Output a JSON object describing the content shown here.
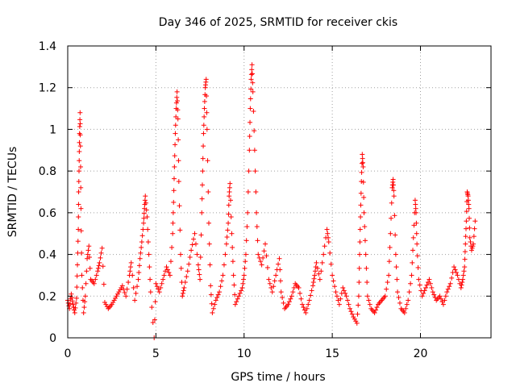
{
  "chart_data": {
    "type": "scatter",
    "title": "Day 346 of 2025, SRMTID for receiver ckis",
    "xlabel": "GPS time / hours",
    "ylabel": "SRMTID / TECUs",
    "xlim": [
      0,
      24
    ],
    "ylim": [
      0,
      1.4
    ],
    "xticks": [
      0,
      5,
      10,
      15,
      20
    ],
    "xtick_labels": [
      "0",
      "5",
      "10",
      "15",
      "20"
    ],
    "yticks": [
      0,
      0.2,
      0.4,
      0.6,
      0.8,
      1.0,
      1.2,
      1.4
    ],
    "ytick_labels": [
      "0",
      "0.2",
      "0.4",
      "0.6",
      "0.8",
      "1",
      "1.2",
      "1.4"
    ],
    "grid": true,
    "marker": "+",
    "color": "#ff0000",
    "series": [
      {
        "name": "ckis",
        "points": [
          [
            0.0,
            0.18
          ],
          [
            0.1,
            0.14
          ],
          [
            0.2,
            0.21
          ],
          [
            0.3,
            0.16
          ],
          [
            0.4,
            0.12
          ],
          [
            0.5,
            0.19
          ],
          [
            0.55,
            0.35
          ],
          [
            0.6,
            0.52
          ],
          [
            0.62,
            0.7
          ],
          [
            0.65,
            0.85
          ],
          [
            0.67,
            0.98
          ],
          [
            0.7,
            1.08
          ],
          [
            0.72,
            0.92
          ],
          [
            0.75,
            0.62
          ],
          [
            0.8,
            0.3
          ],
          [
            0.9,
            0.12
          ],
          [
            1.0,
            0.2
          ],
          [
            1.1,
            0.38
          ],
          [
            1.2,
            0.44
          ],
          [
            1.3,
            0.28
          ],
          [
            1.5,
            0.26
          ],
          [
            1.7,
            0.32
          ],
          [
            1.8,
            0.36
          ],
          [
            1.95,
            0.43
          ],
          [
            2.1,
            0.17
          ],
          [
            2.3,
            0.14
          ],
          [
            2.5,
            0.16
          ],
          [
            2.7,
            0.19
          ],
          [
            2.9,
            0.22
          ],
          [
            3.1,
            0.25
          ],
          [
            3.3,
            0.2
          ],
          [
            3.5,
            0.3
          ],
          [
            3.6,
            0.36
          ],
          [
            3.8,
            0.18
          ],
          [
            4.0,
            0.28
          ],
          [
            4.1,
            0.38
          ],
          [
            4.2,
            0.46
          ],
          [
            4.3,
            0.55
          ],
          [
            4.35,
            0.62
          ],
          [
            4.4,
            0.68
          ],
          [
            4.5,
            0.58
          ],
          [
            4.6,
            0.4
          ],
          [
            4.7,
            0.22
          ],
          [
            4.9,
            0.0
          ],
          [
            5.0,
            0.26
          ],
          [
            5.2,
            0.22
          ],
          [
            5.4,
            0.28
          ],
          [
            5.6,
            0.34
          ],
          [
            5.8,
            0.3
          ],
          [
            5.95,
            0.5
          ],
          [
            6.0,
            0.65
          ],
          [
            6.05,
            0.82
          ],
          [
            6.1,
            0.98
          ],
          [
            6.15,
            1.1
          ],
          [
            6.2,
            1.18
          ],
          [
            6.25,
            1.05
          ],
          [
            6.3,
            0.75
          ],
          [
            6.4,
            0.4
          ],
          [
            6.5,
            0.2
          ],
          [
            6.6,
            0.24
          ],
          [
            6.8,
            0.32
          ],
          [
            7.0,
            0.42
          ],
          [
            7.2,
            0.5
          ],
          [
            7.4,
            0.35
          ],
          [
            7.5,
            0.28
          ],
          [
            7.6,
            0.6
          ],
          [
            7.65,
            0.8
          ],
          [
            7.7,
            0.98
          ],
          [
            7.75,
            1.1
          ],
          [
            7.8,
            1.2
          ],
          [
            7.85,
            1.24
          ],
          [
            7.9,
            1.0
          ],
          [
            8.0,
            0.55
          ],
          [
            8.1,
            0.25
          ],
          [
            8.2,
            0.12
          ],
          [
            8.4,
            0.18
          ],
          [
            8.6,
            0.22
          ],
          [
            8.8,
            0.3
          ],
          [
            9.0,
            0.45
          ],
          [
            9.1,
            0.55
          ],
          [
            9.15,
            0.68
          ],
          [
            9.2,
            0.74
          ],
          [
            9.3,
            0.5
          ],
          [
            9.4,
            0.3
          ],
          [
            9.5,
            0.16
          ],
          [
            9.7,
            0.2
          ],
          [
            9.9,
            0.24
          ],
          [
            10.0,
            0.3
          ],
          [
            10.1,
            0.4
          ],
          [
            10.2,
            0.6
          ],
          [
            10.3,
            0.9
          ],
          [
            10.35,
            1.1
          ],
          [
            10.4,
            1.24
          ],
          [
            10.45,
            1.31
          ],
          [
            10.5,
            1.18
          ],
          [
            10.6,
            0.9
          ],
          [
            10.7,
            0.6
          ],
          [
            10.8,
            0.4
          ],
          [
            11.0,
            0.35
          ],
          [
            11.2,
            0.45
          ],
          [
            11.4,
            0.28
          ],
          [
            11.6,
            0.22
          ],
          [
            11.8,
            0.3
          ],
          [
            12.0,
            0.38
          ],
          [
            12.1,
            0.22
          ],
          [
            12.3,
            0.14
          ],
          [
            12.5,
            0.16
          ],
          [
            12.7,
            0.2
          ],
          [
            12.9,
            0.26
          ],
          [
            13.1,
            0.24
          ],
          [
            13.3,
            0.16
          ],
          [
            13.5,
            0.12
          ],
          [
            13.7,
            0.18
          ],
          [
            13.9,
            0.25
          ],
          [
            14.0,
            0.3
          ],
          [
            14.1,
            0.36
          ],
          [
            14.3,
            0.28
          ],
          [
            14.5,
            0.4
          ],
          [
            14.7,
            0.52
          ],
          [
            14.8,
            0.46
          ],
          [
            15.0,
            0.3
          ],
          [
            15.2,
            0.22
          ],
          [
            15.4,
            0.16
          ],
          [
            15.6,
            0.24
          ],
          [
            15.8,
            0.2
          ],
          [
            16.0,
            0.14
          ],
          [
            16.2,
            0.1
          ],
          [
            16.4,
            0.07
          ],
          [
            16.5,
            0.2
          ],
          [
            16.55,
            0.4
          ],
          [
            16.6,
            0.58
          ],
          [
            16.65,
            0.75
          ],
          [
            16.7,
            0.88
          ],
          [
            16.75,
            0.82
          ],
          [
            16.8,
            0.6
          ],
          [
            16.9,
            0.4
          ],
          [
            17.0,
            0.2
          ],
          [
            17.2,
            0.14
          ],
          [
            17.4,
            0.12
          ],
          [
            17.6,
            0.16
          ],
          [
            17.8,
            0.18
          ],
          [
            18.0,
            0.2
          ],
          [
            18.2,
            0.3
          ],
          [
            18.3,
            0.5
          ],
          [
            18.4,
            0.72
          ],
          [
            18.45,
            0.76
          ],
          [
            18.5,
            0.68
          ],
          [
            18.6,
            0.4
          ],
          [
            18.7,
            0.22
          ],
          [
            18.9,
            0.14
          ],
          [
            19.1,
            0.12
          ],
          [
            19.3,
            0.18
          ],
          [
            19.5,
            0.3
          ],
          [
            19.6,
            0.48
          ],
          [
            19.7,
            0.66
          ],
          [
            19.75,
            0.6
          ],
          [
            19.8,
            0.45
          ],
          [
            19.9,
            0.28
          ],
          [
            20.1,
            0.2
          ],
          [
            20.3,
            0.24
          ],
          [
            20.5,
            0.28
          ],
          [
            20.7,
            0.22
          ],
          [
            20.9,
            0.18
          ],
          [
            21.1,
            0.2
          ],
          [
            21.3,
            0.16
          ],
          [
            21.5,
            0.22
          ],
          [
            21.7,
            0.26
          ],
          [
            21.9,
            0.34
          ],
          [
            22.1,
            0.3
          ],
          [
            22.3,
            0.24
          ],
          [
            22.4,
            0.28
          ],
          [
            22.5,
            0.34
          ],
          [
            22.55,
            0.45
          ],
          [
            22.6,
            0.56
          ],
          [
            22.65,
            0.7
          ],
          [
            22.7,
            0.68
          ],
          [
            22.75,
            0.62
          ],
          [
            22.8,
            0.48
          ],
          [
            22.9,
            0.42
          ],
          [
            23.0,
            0.45
          ],
          [
            23.1,
            0.56
          ]
        ]
      }
    ]
  }
}
